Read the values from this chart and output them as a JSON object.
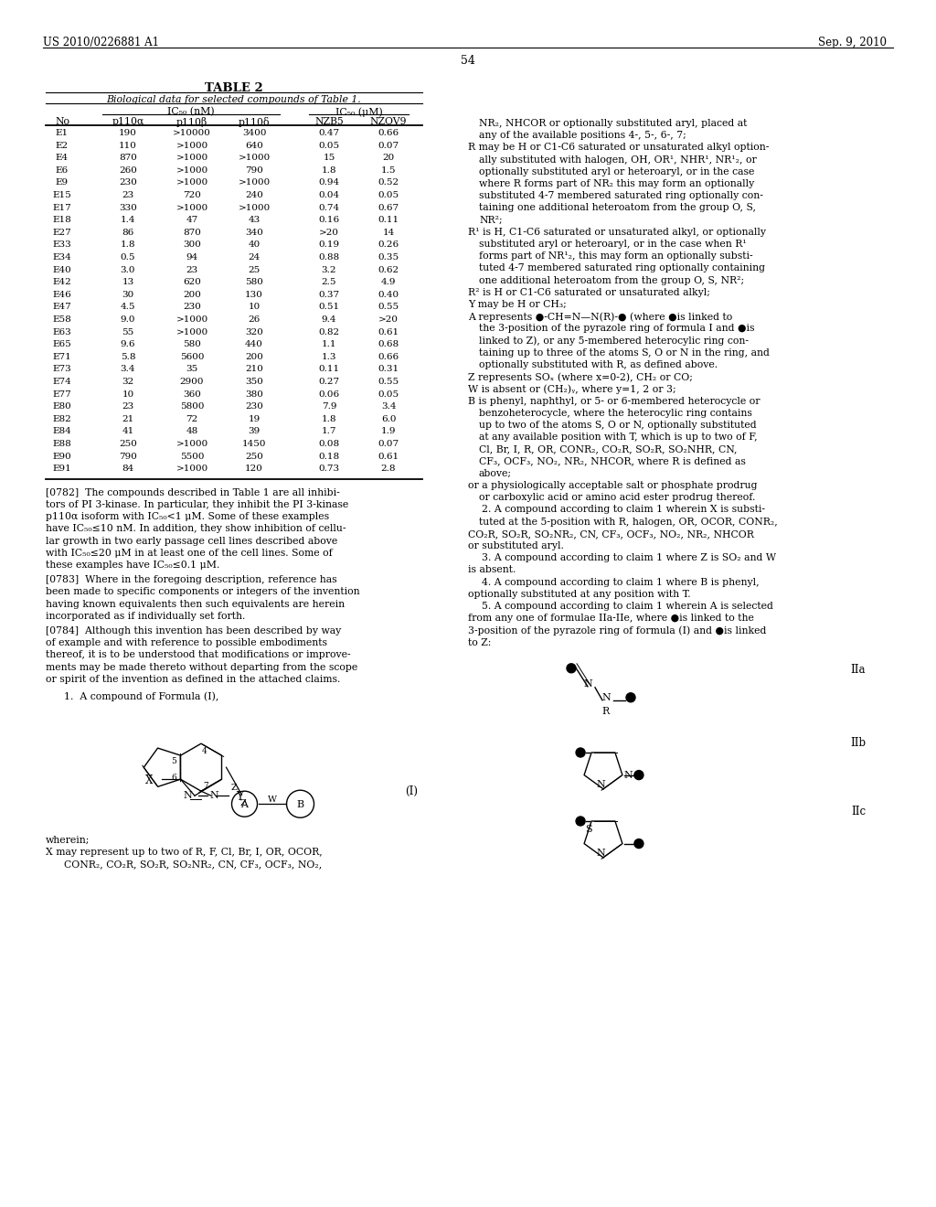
{
  "patent_number": "US 2010/0226881 A1",
  "date": "Sep. 9, 2010",
  "page_number": "54",
  "table_title": "TABLE 2",
  "table_subtitle": "Biological data for selected compounds of Table 1.",
  "col_group1": "IC₅₀ (nM)",
  "col_group2": "IC₅₀ (μM)",
  "columns": [
    "No",
    "p110α",
    "p110β",
    "p110δ",
    "NZB5",
    "NZOV9"
  ],
  "rows": [
    [
      "E1",
      "190",
      ">10000",
      "3400",
      "0.47",
      "0.66"
    ],
    [
      "E2",
      "110",
      ">1000",
      "640",
      "0.05",
      "0.07"
    ],
    [
      "E4",
      "870",
      ">1000",
      ">1000",
      "15",
      "20"
    ],
    [
      "E6",
      "260",
      ">1000",
      "790",
      "1.8",
      "1.5"
    ],
    [
      "E9",
      "230",
      ">1000",
      ">1000",
      "0.94",
      "0.52"
    ],
    [
      "E15",
      "23",
      "720",
      "240",
      "0.04",
      "0.05"
    ],
    [
      "E17",
      "330",
      ">1000",
      ">1000",
      "0.74",
      "0.67"
    ],
    [
      "E18",
      "1.4",
      "47",
      "43",
      "0.16",
      "0.11"
    ],
    [
      "E27",
      "86",
      "870",
      "340",
      ">20",
      "14"
    ],
    [
      "E33",
      "1.8",
      "300",
      "40",
      "0.19",
      "0.26"
    ],
    [
      "E34",
      "0.5",
      "94",
      "24",
      "0.88",
      "0.35"
    ],
    [
      "E40",
      "3.0",
      "23",
      "25",
      "3.2",
      "0.62"
    ],
    [
      "E42",
      "13",
      "620",
      "580",
      "2.5",
      "4.9"
    ],
    [
      "E46",
      "30",
      "200",
      "130",
      "0.37",
      "0.40"
    ],
    [
      "E47",
      "4.5",
      "230",
      "10",
      "0.51",
      "0.55"
    ],
    [
      "E58",
      "9.0",
      ">1000",
      "26",
      "9.4",
      ">20"
    ],
    [
      "E63",
      "55",
      ">1000",
      "320",
      "0.82",
      "0.61"
    ],
    [
      "E65",
      "9.6",
      "580",
      "440",
      "1.1",
      "0.68"
    ],
    [
      "E71",
      "5.8",
      "5600",
      "200",
      "1.3",
      "0.66"
    ],
    [
      "E73",
      "3.4",
      "35",
      "210",
      "0.11",
      "0.31"
    ],
    [
      "E74",
      "32",
      "2900",
      "350",
      "0.27",
      "0.55"
    ],
    [
      "E77",
      "10",
      "360",
      "380",
      "0.06",
      "0.05"
    ],
    [
      "E80",
      "23",
      "5800",
      "230",
      "7.9",
      "3.4"
    ],
    [
      "E82",
      "21",
      "72",
      "19",
      "1.8",
      "6.0"
    ],
    [
      "E84",
      "41",
      "48",
      "39",
      "1.7",
      "1.9"
    ],
    [
      "E88",
      "250",
      ">1000",
      "1450",
      "0.08",
      "0.07"
    ],
    [
      "E90",
      "790",
      "5500",
      "250",
      "0.18",
      "0.61"
    ],
    [
      "E91",
      "84",
      ">1000",
      "120",
      "0.73",
      "2.8"
    ]
  ],
  "right_col_lines": [
    [
      "indent",
      "NR₂, NHCOR or optionally substituted aryl, placed at"
    ],
    [
      "indent",
      "any of the available positions 4-, 5-, 6-, 7;"
    ],
    [
      "hang0",
      "R may be H or C1-C6 saturated or unsaturated alkyl option-"
    ],
    [
      "indent",
      "ally substituted with halogen, OH, OR¹, NHR¹, NR¹₂, or"
    ],
    [
      "indent",
      "optionally substituted aryl or heteroaryl, or in the case"
    ],
    [
      "indent",
      "where R forms part of NR₂ this may form an optionally"
    ],
    [
      "indent",
      "substituted 4-7 membered saturated ring optionally con-"
    ],
    [
      "indent",
      "taining one additional heteroatom from the group O, S,"
    ],
    [
      "indent",
      "NR²;"
    ],
    [
      "hang0",
      "R¹ is H, C1-C6 saturated or unsaturated alkyl, or optionally"
    ],
    [
      "indent",
      "substituted aryl or heteroaryl, or in the case when R¹"
    ],
    [
      "indent",
      "forms part of NR¹₂, this may form an optionally substi-"
    ],
    [
      "indent",
      "tuted 4-7 membered saturated ring optionally containing"
    ],
    [
      "indent",
      "one additional heteroatom from the group O, S, NR²;"
    ],
    [
      "hang0",
      "R² is H or C1-C6 saturated or unsaturated alkyl;"
    ],
    [
      "hang0",
      "Y may be H or CH₃;"
    ],
    [
      "hang0",
      "A represents ●-CH=N—N(R)-● (where ●is linked to"
    ],
    [
      "indent",
      "the 3-position of the pyrazole ring of formula I and ●is"
    ],
    [
      "indent",
      "linked to Z), or any 5-membered heterocylic ring con-"
    ],
    [
      "indent",
      "taining up to three of the atoms S, O or N in the ring, and"
    ],
    [
      "indent",
      "optionally substituted with R, as defined above."
    ],
    [
      "hang0",
      "Z represents SOₓ (where x=0-2), CH₂ or CO;"
    ],
    [
      "hang0",
      "W is absent or (CH₂)ᵧ, where y=1, 2 or 3;"
    ],
    [
      "hang0",
      "B is phenyl, naphthyl, or 5- or 6-membered heterocycle or"
    ],
    [
      "indent",
      "benzoheterocycle, where the heterocylic ring contains"
    ],
    [
      "indent",
      "up to two of the atoms S, O or N, optionally substituted"
    ],
    [
      "indent",
      "at any available position with T, which is up to two of F,"
    ],
    [
      "indent",
      "Cl, Br, I, R, OR, CONR₂, CO₂R, SO₂R, SO₂NHR, CN,"
    ],
    [
      "indent",
      "CF₃, OCF₃, NO₂, NR₂, NHCOR, where R is defined as"
    ],
    [
      "indent",
      "above;"
    ],
    [
      "hang0",
      "or a physiologically acceptable salt or phosphate prodrug"
    ],
    [
      "indent",
      "or carboxylic acid or amino acid ester prodrug thereof."
    ],
    [
      "claim",
      "2. A compound according to claim 1 wherein X is substi-"
    ],
    [
      "indent",
      "tuted at the 5-position with R, halogen, OR, OCOR, CONR₂,"
    ],
    [
      "noindent",
      "CO₂R, SO₂R, SO₂NR₂, CN, CF₃, OCF₃, NO₂, NR₂, NHCOR"
    ],
    [
      "noindent",
      "or substituted aryl."
    ],
    [
      "claim",
      "3. A compound according to claim 1 where Z is SO₂ and W"
    ],
    [
      "noindent",
      "is absent."
    ],
    [
      "claim",
      "4. A compound according to claim 1 where B is phenyl,"
    ],
    [
      "noindent",
      "optionally substituted at any position with T."
    ],
    [
      "claim",
      "5. A compound according to claim 1 wherein A is selected"
    ],
    [
      "noindent",
      "from any one of formulae IIa-IIe, where ●is linked to the"
    ],
    [
      "noindent",
      "3-position of the pyrazole ring of formula (I) and ●is linked"
    ],
    [
      "noindent",
      "to Z:"
    ]
  ],
  "p0782_lines": [
    "[0782]  The compounds described in Table 1 are all inhibi-",
    "tors of PI 3-kinase. In particular, they inhibit the PI 3-kinase",
    "p110α isoform with IC₅₀<1 μM. Some of these examples",
    "have IC₅₀≤10 nM. In addition, they show inhibition of cellu-",
    "lar growth in two early passage cell lines described above",
    "with IC₅₀≤20 μM in at least one of the cell lines. Some of",
    "these examples have IC₅₀≤0.1 μM."
  ],
  "p0783_lines": [
    "[0783]  Where in the foregoing description, reference has",
    "been made to specific components or integers of the invention",
    "having known equivalents then such equivalents are herein",
    "incorporated as if individually set forth."
  ],
  "p0784_lines": [
    "[0784]  Although this invention has been described by way",
    "of example and with reference to possible embodiments",
    "thereof, it is to be understood that modifications or improve-",
    "ments may be made thereto without departing from the scope",
    "or spirit of the invention as defined in the attached claims."
  ],
  "bg_color": "#ffffff"
}
